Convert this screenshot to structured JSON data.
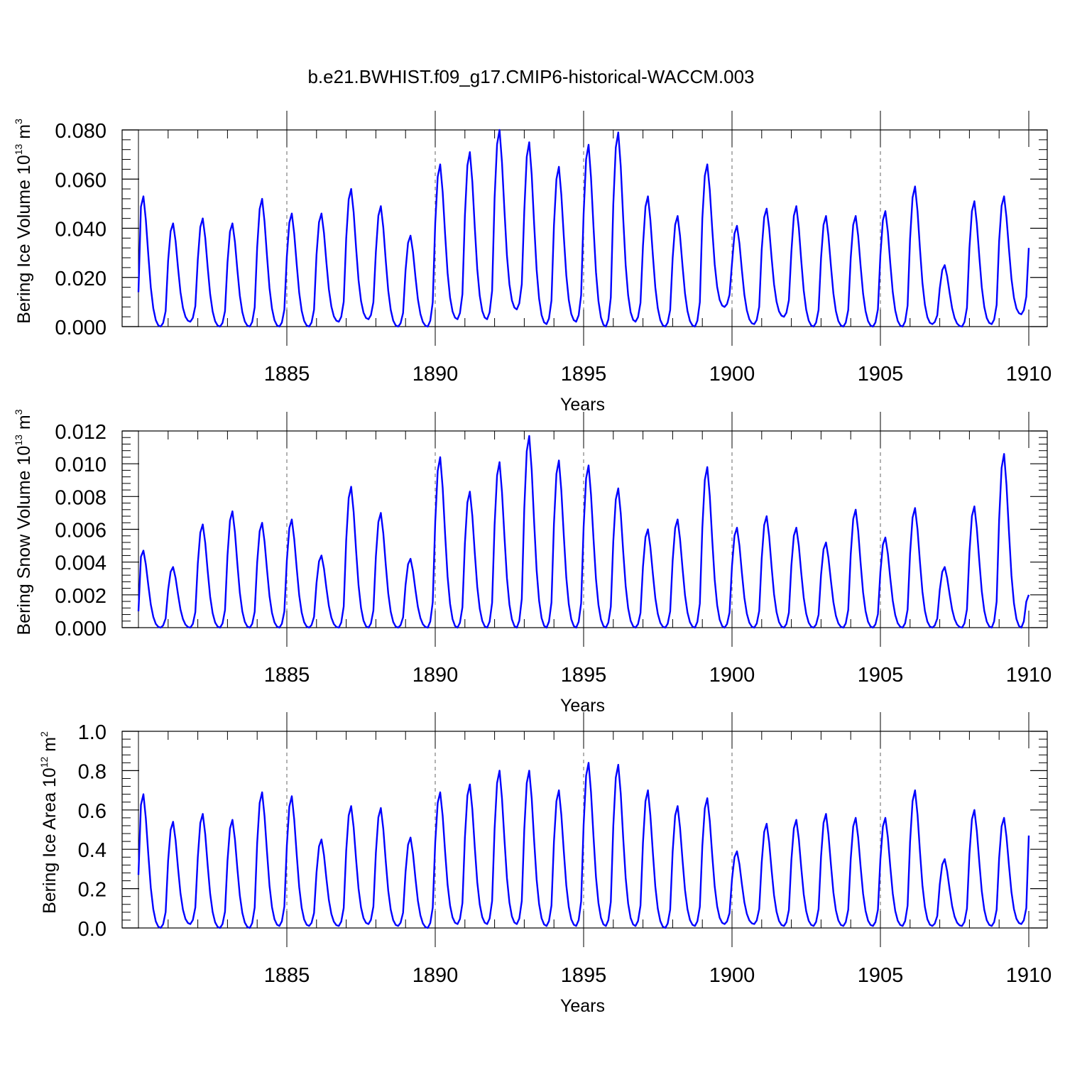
{
  "figure": {
    "title": "b.e21.BWHIST.f09_g17.CMIP6-historical-WACCM.003"
  },
  "colors": {
    "series": "#0000ff",
    "axes": "#000000",
    "grid": "#000000"
  },
  "chart_data": [
    {
      "type": "line",
      "ylabel_main": "Bering Ice Volume 10",
      "ylabel_exp": "13",
      "ylabel_unit": "m",
      "ylabel_unit_exp": "3",
      "xlabel": "Years",
      "xlim": [
        1880,
        1910
      ],
      "ylim": [
        0,
        0.08
      ],
      "yticks": [
        0.0,
        0.02,
        0.04,
        0.06,
        0.08
      ],
      "ytick_labels": [
        "0.000",
        "0.020",
        "0.040",
        "0.060",
        "0.080"
      ],
      "xticks": [
        1885,
        1890,
        1895,
        1900,
        1905,
        1910
      ],
      "xtick_labels": [
        "1885",
        "1890",
        "1895",
        "1900",
        "1905",
        "1910"
      ],
      "gridlines_x": [
        1885,
        1890,
        1895,
        1900,
        1905
      ],
      "peaks": [
        {
          "year": 1880,
          "peak": 0.053
        },
        {
          "year": 1881,
          "peak": 0.042
        },
        {
          "year": 1882,
          "peak": 0.044
        },
        {
          "year": 1883,
          "peak": 0.042
        },
        {
          "year": 1884,
          "peak": 0.052
        },
        {
          "year": 1885,
          "peak": 0.046
        },
        {
          "year": 1886,
          "peak": 0.046
        },
        {
          "year": 1887,
          "peak": 0.056
        },
        {
          "year": 1888,
          "peak": 0.049
        },
        {
          "year": 1889,
          "peak": 0.037
        },
        {
          "year": 1890,
          "peak": 0.066
        },
        {
          "year": 1891,
          "peak": 0.071
        },
        {
          "year": 1892,
          "peak": 0.08
        },
        {
          "year": 1893,
          "peak": 0.075
        },
        {
          "year": 1894,
          "peak": 0.065
        },
        {
          "year": 1895,
          "peak": 0.074
        },
        {
          "year": 1896,
          "peak": 0.079
        },
        {
          "year": 1897,
          "peak": 0.053
        },
        {
          "year": 1898,
          "peak": 0.045
        },
        {
          "year": 1899,
          "peak": 0.066
        },
        {
          "year": 1900,
          "peak": 0.041
        },
        {
          "year": 1901,
          "peak": 0.048
        },
        {
          "year": 1902,
          "peak": 0.049
        },
        {
          "year": 1903,
          "peak": 0.045
        },
        {
          "year": 1904,
          "peak": 0.045
        },
        {
          "year": 1905,
          "peak": 0.047
        },
        {
          "year": 1906,
          "peak": 0.057
        },
        {
          "year": 1907,
          "peak": 0.025
        },
        {
          "year": 1908,
          "peak": 0.051
        },
        {
          "year": 1909,
          "peak": 0.053
        }
      ],
      "minima": [
        0.0,
        0.002,
        0.0,
        0.0,
        0.0,
        0.0,
        0.002,
        0.003,
        0.0,
        0.0,
        0.003,
        0.003,
        0.007,
        0.001,
        0.002,
        0.0,
        0.002,
        0.0,
        0.0,
        0.008,
        0.001,
        0.004,
        0.0,
        0.0,
        0.0,
        0.0,
        0.001,
        0.0,
        0.001,
        0.005
      ],
      "start_value": 0.014,
      "end_value": 0.032
    },
    {
      "type": "line",
      "ylabel_main": "Bering Snow Volume 10",
      "ylabel_exp": "13",
      "ylabel_unit": "m",
      "ylabel_unit_exp": "3",
      "xlabel": "Years",
      "xlim": [
        1880,
        1910
      ],
      "ylim": [
        0,
        0.012
      ],
      "yticks": [
        0.0,
        0.002,
        0.004,
        0.006,
        0.008,
        0.01,
        0.012
      ],
      "ytick_labels": [
        "0.000",
        "0.002",
        "0.004",
        "0.006",
        "0.008",
        "0.010",
        "0.012"
      ],
      "xticks": [
        1885,
        1890,
        1895,
        1900,
        1905,
        1910
      ],
      "xtick_labels": [
        "1885",
        "1890",
        "1895",
        "1900",
        "1905",
        "1910"
      ],
      "gridlines_x": [
        1885,
        1890,
        1895,
        1900,
        1905
      ],
      "peaks": [
        {
          "year": 1880,
          "peak": 0.0047
        },
        {
          "year": 1881,
          "peak": 0.0037
        },
        {
          "year": 1882,
          "peak": 0.0063
        },
        {
          "year": 1883,
          "peak": 0.0071
        },
        {
          "year": 1884,
          "peak": 0.0064
        },
        {
          "year": 1885,
          "peak": 0.0066
        },
        {
          "year": 1886,
          "peak": 0.0044
        },
        {
          "year": 1887,
          "peak": 0.0086
        },
        {
          "year": 1888,
          "peak": 0.007
        },
        {
          "year": 1889,
          "peak": 0.0042
        },
        {
          "year": 1890,
          "peak": 0.0104
        },
        {
          "year": 1891,
          "peak": 0.0083
        },
        {
          "year": 1892,
          "peak": 0.0101
        },
        {
          "year": 1893,
          "peak": 0.0117
        },
        {
          "year": 1894,
          "peak": 0.0102
        },
        {
          "year": 1895,
          "peak": 0.0099
        },
        {
          "year": 1896,
          "peak": 0.0085
        },
        {
          "year": 1897,
          "peak": 0.006
        },
        {
          "year": 1898,
          "peak": 0.0066
        },
        {
          "year": 1899,
          "peak": 0.0098
        },
        {
          "year": 1900,
          "peak": 0.0061
        },
        {
          "year": 1901,
          "peak": 0.0068
        },
        {
          "year": 1902,
          "peak": 0.0061
        },
        {
          "year": 1903,
          "peak": 0.0052
        },
        {
          "year": 1904,
          "peak": 0.0072
        },
        {
          "year": 1905,
          "peak": 0.0055
        },
        {
          "year": 1906,
          "peak": 0.0073
        },
        {
          "year": 1907,
          "peak": 0.0037
        },
        {
          "year": 1908,
          "peak": 0.0074
        },
        {
          "year": 1909,
          "peak": 0.0106
        }
      ],
      "minima": [
        0.0,
        0.0,
        0.0,
        0.0,
        0.0,
        0.0,
        0.0,
        0.0,
        0.0,
        0.0,
        0.0,
        0.0,
        0.0,
        0.0,
        0.0,
        0.0,
        0.0,
        0.0,
        0.0,
        0.0,
        0.0,
        0.0,
        0.0,
        0.0,
        0.0,
        0.0,
        0.0,
        0.0,
        0.0,
        0.0
      ],
      "start_value": 0.001,
      "end_value": 0.002
    },
    {
      "type": "line",
      "ylabel_main": "Bering Ice Area 10",
      "ylabel_exp": "12",
      "ylabel_unit": "m",
      "ylabel_unit_exp": "2",
      "xlabel": "Years",
      "xlim": [
        1880,
        1910
      ],
      "ylim": [
        0,
        1.0
      ],
      "yticks": [
        0.0,
        0.2,
        0.4,
        0.6,
        0.8,
        1.0
      ],
      "ytick_labels": [
        "0.0",
        "0.2",
        "0.4",
        "0.6",
        "0.8",
        "1.0"
      ],
      "xticks": [
        1885,
        1890,
        1895,
        1900,
        1905,
        1910
      ],
      "xtick_labels": [
        "1885",
        "1890",
        "1895",
        "1900",
        "1905",
        "1910"
      ],
      "gridlines_x": [
        1885,
        1890,
        1895,
        1900,
        1905
      ],
      "peaks": [
        {
          "year": 1880,
          "peak": 0.68
        },
        {
          "year": 1881,
          "peak": 0.54
        },
        {
          "year": 1882,
          "peak": 0.58
        },
        {
          "year": 1883,
          "peak": 0.55
        },
        {
          "year": 1884,
          "peak": 0.69
        },
        {
          "year": 1885,
          "peak": 0.67
        },
        {
          "year": 1886,
          "peak": 0.45
        },
        {
          "year": 1887,
          "peak": 0.62
        },
        {
          "year": 1888,
          "peak": 0.61
        },
        {
          "year": 1889,
          "peak": 0.46
        },
        {
          "year": 1890,
          "peak": 0.69
        },
        {
          "year": 1891,
          "peak": 0.73
        },
        {
          "year": 1892,
          "peak": 0.8
        },
        {
          "year": 1893,
          "peak": 0.8
        },
        {
          "year": 1894,
          "peak": 0.7
        },
        {
          "year": 1895,
          "peak": 0.84
        },
        {
          "year": 1896,
          "peak": 0.83
        },
        {
          "year": 1897,
          "peak": 0.7
        },
        {
          "year": 1898,
          "peak": 0.62
        },
        {
          "year": 1899,
          "peak": 0.66
        },
        {
          "year": 1900,
          "peak": 0.39
        },
        {
          "year": 1901,
          "peak": 0.53
        },
        {
          "year": 1902,
          "peak": 0.55
        },
        {
          "year": 1903,
          "peak": 0.58
        },
        {
          "year": 1904,
          "peak": 0.56
        },
        {
          "year": 1905,
          "peak": 0.56
        },
        {
          "year": 1906,
          "peak": 0.7
        },
        {
          "year": 1907,
          "peak": 0.35
        },
        {
          "year": 1908,
          "peak": 0.6
        },
        {
          "year": 1909,
          "peak": 0.56
        }
      ],
      "minima": [
        0.0,
        0.02,
        0.0,
        0.0,
        0.01,
        0.01,
        0.01,
        0.02,
        0.01,
        0.0,
        0.02,
        0.02,
        0.02,
        0.01,
        0.01,
        0.01,
        0.01,
        0.0,
        0.01,
        0.02,
        0.02,
        0.01,
        0.01,
        0.01,
        0.01,
        0.01,
        0.01,
        0.01,
        0.01,
        0.02
      ],
      "start_value": 0.27,
      "end_value": 0.47
    }
  ]
}
